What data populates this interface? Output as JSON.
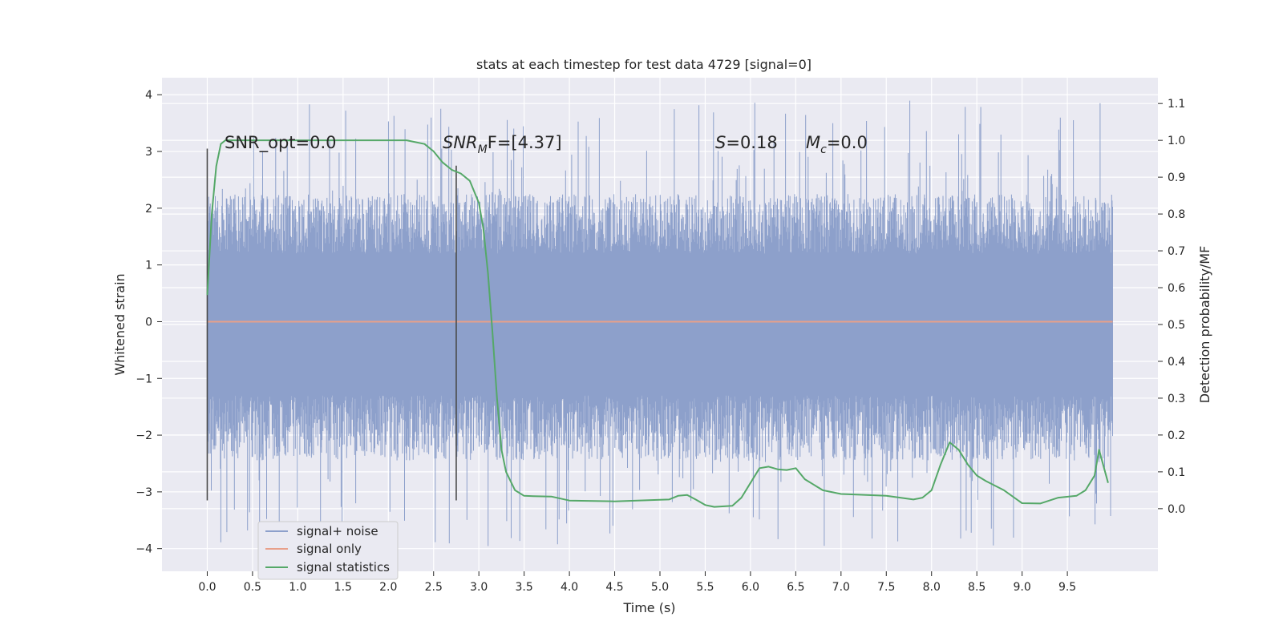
{
  "chart_data": {
    "type": "line",
    "title": "stats at each timestep for test data 4729 [signal=0]",
    "xlabel": "Time (s)",
    "ylabel": "Whitened strain",
    "y2label": "Detection probability/MF",
    "xlim": [
      -0.5,
      10.5
    ],
    "ylim": [
      -4.4,
      4.3
    ],
    "y2lim": [
      -0.17,
      1.17
    ],
    "xticks": [
      "0.0",
      "0.5",
      "1.0",
      "1.5",
      "2.0",
      "2.5",
      "3.0",
      "3.5",
      "4.0",
      "4.5",
      "5.0",
      "5.5",
      "6.0",
      "6.5",
      "7.0",
      "7.5",
      "8.0",
      "8.5",
      "9.0",
      "9.5"
    ],
    "yticks": [
      "4",
      "3",
      "2",
      "1",
      "0",
      "−1",
      "−2",
      "−3",
      "−4"
    ],
    "y2ticks": [
      "1.1",
      "1.0",
      "0.9",
      "0.8",
      "0.7",
      "0.6",
      "0.5",
      "0.4",
      "0.3",
      "0.2",
      "0.1",
      "0.0"
    ],
    "grid": true,
    "legend": {
      "position": "lower-left",
      "entries": [
        "signal+ noise",
        "signal only",
        "signal statistics"
      ]
    },
    "colors": {
      "noise": "#8da0cb",
      "signal": "#e8a08a",
      "statistics": "#55a868",
      "markers": "#4a4a4a",
      "background": "#eaeaf2"
    },
    "annotations": {
      "snr_opt_text": "SNR_opt=0.0",
      "snr_mf_symbol": "SNR",
      "snr_mf_sub": "M",
      "snr_mf_rest": "F=[4.37]",
      "s_symbol": "S",
      "s_rest": "=0.18",
      "mc_symbol": "M",
      "mc_sub": "c",
      "mc_rest": "=0.0"
    },
    "vertical_markers": [
      {
        "x": 0.0,
        "y": [
          -3.15,
          3.05
        ]
      },
      {
        "x": 2.75,
        "y": [
          -3.15,
          2.75
        ]
      }
    ],
    "series": [
      {
        "name": "signal+ noise",
        "axis": "left",
        "render": "noise-band",
        "x_range": [
          0.0,
          10.0
        ],
        "core_band": [
          -1.3,
          1.2
        ],
        "typical_peaks": [
          -2.2,
          2.2
        ],
        "extreme": [
          -4.0,
          3.9
        ]
      },
      {
        "name": "signal only",
        "axis": "left",
        "x": [
          0.0,
          10.0
        ],
        "values": [
          0.0,
          0.0
        ]
      },
      {
        "name": "signal statistics",
        "axis": "right",
        "x": [
          0.0,
          0.05,
          0.1,
          0.15,
          0.2,
          0.3,
          0.5,
          1.0,
          1.5,
          2.0,
          2.2,
          2.4,
          2.5,
          2.6,
          2.7,
          2.8,
          2.9,
          3.0,
          3.05,
          3.1,
          3.15,
          3.2,
          3.25,
          3.3,
          3.35,
          3.4,
          3.5,
          3.6,
          3.8,
          4.0,
          4.5,
          5.0,
          5.1,
          5.2,
          5.3,
          5.4,
          5.5,
          5.6,
          5.8,
          5.9,
          6.0,
          6.1,
          6.2,
          6.3,
          6.4,
          6.5,
          6.6,
          6.8,
          7.0,
          7.2,
          7.5,
          7.8,
          7.9,
          8.0,
          8.1,
          8.2,
          8.3,
          8.4,
          8.5,
          8.6,
          8.8,
          9.0,
          9.2,
          9.4,
          9.6,
          9.7,
          9.8,
          9.85,
          9.95
        ],
        "values": [
          0.58,
          0.8,
          0.93,
          0.99,
          1.0,
          1.0,
          1.0,
          1.0,
          1.0,
          1.0,
          1.0,
          0.99,
          0.97,
          0.94,
          0.92,
          0.91,
          0.89,
          0.83,
          0.76,
          0.64,
          0.48,
          0.3,
          0.16,
          0.1,
          0.075,
          0.05,
          0.035,
          0.034,
          0.033,
          0.022,
          0.02,
          0.024,
          0.025,
          0.035,
          0.037,
          0.024,
          0.01,
          0.005,
          0.008,
          0.03,
          0.07,
          0.11,
          0.114,
          0.107,
          0.105,
          0.11,
          0.08,
          0.05,
          0.04,
          0.038,
          0.035,
          0.025,
          0.03,
          0.05,
          0.12,
          0.18,
          0.16,
          0.12,
          0.09,
          0.075,
          0.05,
          0.015,
          0.014,
          0.03,
          0.035,
          0.05,
          0.09,
          0.16,
          0.07
        ]
      }
    ]
  }
}
